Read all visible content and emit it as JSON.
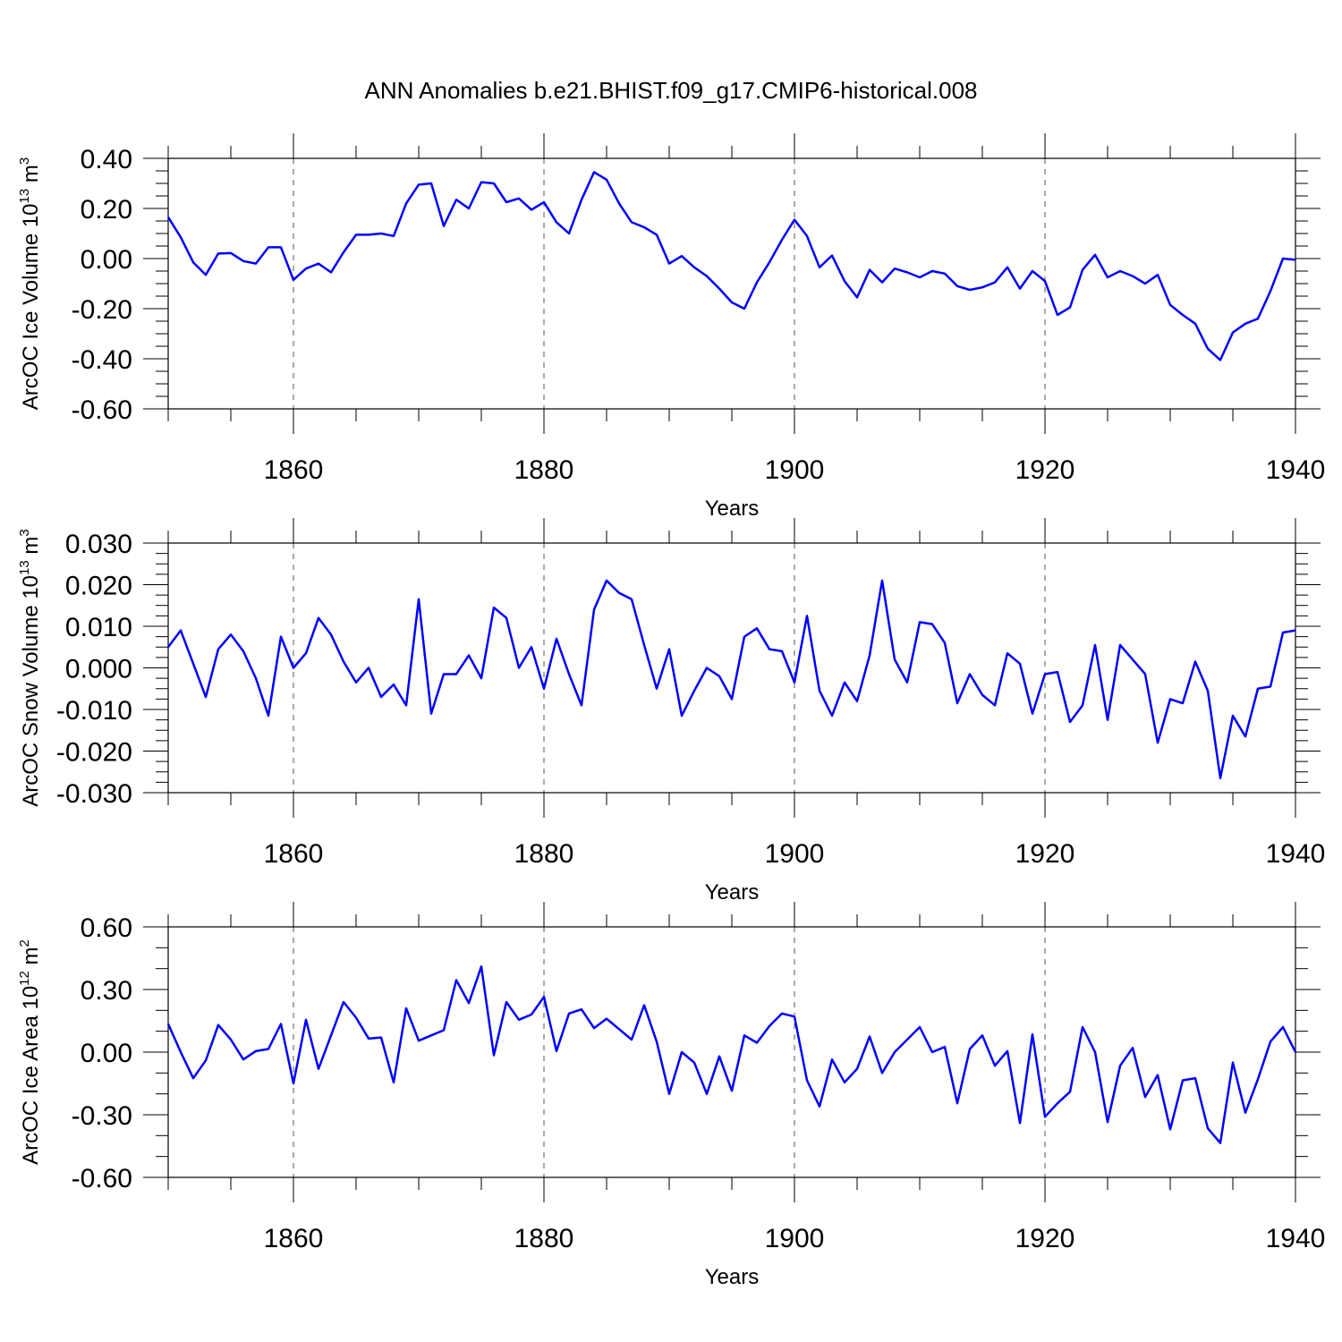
{
  "title": "ANN Anomalies b.e21.BHIST.f09_g17.CMIP6-historical.008",
  "chart_data": [
    {
      "type": "line",
      "ylabel_main": "ArcOC Ice Volume 10",
      "ylabel_sup": "13",
      "ylabel_unit": " m",
      "ylabel_unit_sup": "3",
      "xlabel": "Years",
      "xlim": [
        1850,
        1940
      ],
      "ylim": [
        -0.6,
        0.4
      ],
      "yticks": [
        -0.6,
        -0.4,
        -0.2,
        0.0,
        0.2,
        0.4
      ],
      "ytick_labels": [
        "-0.60",
        "-0.40",
        "-0.20",
        "0.00",
        "0.20",
        "0.40"
      ],
      "yminor_step": 0.05,
      "xticks": [
        1860,
        1880,
        1900,
        1920,
        1940
      ],
      "xtick_labels": [
        "1860",
        "1880",
        "1900",
        "1920",
        "1940"
      ],
      "grid_x": [
        1860,
        1880,
        1900,
        1920
      ],
      "x_start": 1850,
      "values": [
        0.165,
        0.085,
        -0.015,
        -0.065,
        0.02,
        0.022,
        -0.01,
        -0.02,
        0.045,
        0.045,
        -0.085,
        -0.04,
        -0.02,
        -0.055,
        0.025,
        0.095,
        0.095,
        0.1,
        0.09,
        0.22,
        0.295,
        0.3,
        0.13,
        0.235,
        0.2,
        0.305,
        0.3,
        0.225,
        0.24,
        0.195,
        0.225,
        0.145,
        0.1,
        0.235,
        0.345,
        0.315,
        0.22,
        0.145,
        0.125,
        0.095,
        -0.02,
        0.01,
        -0.035,
        -0.07,
        -0.12,
        -0.175,
        -0.2,
        -0.095,
        -0.015,
        0.075,
        0.155,
        0.09,
        -0.035,
        0.012,
        -0.09,
        -0.155,
        -0.045,
        -0.095,
        -0.04,
        -0.055,
        -0.075,
        -0.05,
        -0.06,
        -0.11,
        -0.125,
        -0.115,
        -0.095,
        -0.035,
        -0.12,
        -0.05,
        -0.09,
        -0.225,
        -0.195,
        -0.045,
        0.015,
        -0.075,
        -0.05,
        -0.07,
        -0.1,
        -0.065,
        -0.185,
        -0.225,
        -0.26,
        -0.36,
        -0.405,
        -0.295,
        -0.26,
        -0.24,
        -0.13,
        0.0,
        -0.005
      ]
    },
    {
      "type": "line",
      "ylabel_main": "ArcOC Snow Volume 10",
      "ylabel_sup": "13",
      "ylabel_unit": " m",
      "ylabel_unit_sup": "3",
      "xlabel": "Years",
      "xlim": [
        1850,
        1940
      ],
      "ylim": [
        -0.03,
        0.03
      ],
      "yticks": [
        -0.03,
        -0.02,
        -0.01,
        0.0,
        0.01,
        0.02,
        0.03
      ],
      "ytick_labels": [
        "-0.030",
        "-0.020",
        "-0.010",
        "0.000",
        "0.010",
        "0.020",
        "0.030"
      ],
      "yminor_step": 0.0025,
      "xticks": [
        1860,
        1880,
        1900,
        1920,
        1940
      ],
      "xtick_labels": [
        "1860",
        "1880",
        "1900",
        "1920",
        "1940"
      ],
      "grid_x": [
        1860,
        1880,
        1900,
        1920
      ],
      "x_start": 1850,
      "values": [
        0.005,
        0.009,
        0.001,
        -0.007,
        0.0045,
        0.008,
        0.004,
        -0.0025,
        -0.0115,
        0.0075,
        0.0,
        0.0035,
        0.012,
        0.008,
        0.0015,
        -0.0035,
        0.0,
        -0.007,
        -0.004,
        -0.009,
        0.0165,
        -0.011,
        -0.0015,
        -0.0015,
        0.003,
        -0.0025,
        0.0145,
        0.012,
        0.0,
        0.005,
        -0.005,
        0.007,
        -0.0015,
        -0.009,
        0.014,
        0.021,
        0.018,
        0.0165,
        0.0055,
        -0.005,
        0.0045,
        -0.0115,
        -0.0055,
        0.0,
        -0.002,
        -0.0075,
        0.0075,
        0.0095,
        0.0045,
        0.004,
        -0.0035,
        0.0125,
        -0.0055,
        -0.0115,
        -0.0035,
        -0.008,
        0.003,
        0.021,
        0.002,
        -0.0035,
        0.011,
        0.0105,
        0.006,
        -0.0085,
        -0.0015,
        -0.0065,
        -0.009,
        0.0035,
        0.001,
        -0.011,
        -0.0015,
        -0.001,
        -0.013,
        -0.009,
        0.0055,
        -0.0125,
        0.0055,
        0.002,
        -0.0015,
        -0.018,
        -0.0075,
        -0.0085,
        0.0015,
        -0.0055,
        -0.0265,
        -0.0115,
        -0.0165,
        -0.005,
        -0.0045,
        0.0085,
        0.009
      ]
    },
    {
      "type": "line",
      "ylabel_main": "ArcOC Ice Area 10",
      "ylabel_sup": "12",
      "ylabel_unit": " m",
      "ylabel_unit_sup": "2",
      "xlabel": "Years",
      "xlim": [
        1850,
        1940
      ],
      "ylim": [
        -0.6,
        0.6
      ],
      "yticks": [
        -0.6,
        -0.3,
        0.0,
        0.3,
        0.6
      ],
      "ytick_labels": [
        "-0.60",
        "-0.30",
        "0.00",
        "0.30",
        "0.60"
      ],
      "yminor_step": 0.1,
      "xticks": [
        1860,
        1880,
        1900,
        1920,
        1940
      ],
      "xtick_labels": [
        "1860",
        "1880",
        "1900",
        "1920",
        "1940"
      ],
      "grid_x": [
        1860,
        1880,
        1900,
        1920
      ],
      "x_start": 1850,
      "values": [
        0.135,
        0.0,
        -0.125,
        -0.04,
        0.13,
        0.06,
        -0.035,
        0.005,
        0.015,
        0.135,
        -0.15,
        0.155,
        -0.08,
        0.08,
        0.24,
        0.165,
        0.065,
        0.07,
        -0.145,
        0.21,
        0.055,
        0.08,
        0.105,
        0.345,
        0.235,
        0.41,
        -0.015,
        0.24,
        0.155,
        0.18,
        0.265,
        0.005,
        0.185,
        0.205,
        0.115,
        0.16,
        0.11,
        0.06,
        0.225,
        0.05,
        -0.2,
        0.0,
        -0.05,
        -0.2,
        -0.02,
        -0.185,
        0.08,
        0.045,
        0.125,
        0.185,
        0.17,
        -0.135,
        -0.26,
        -0.035,
        -0.145,
        -0.08,
        0.075,
        -0.1,
        0.0,
        0.06,
        0.12,
        0.0,
        0.025,
        -0.245,
        0.015,
        0.08,
        -0.065,
        0.005,
        -0.34,
        0.085,
        -0.31,
        -0.245,
        -0.19,
        0.12,
        0.0,
        -0.335,
        -0.065,
        0.02,
        -0.215,
        -0.11,
        -0.37,
        -0.135,
        -0.125,
        -0.365,
        -0.435,
        -0.05,
        -0.29,
        -0.13,
        0.05,
        0.12,
        0.0
      ]
    }
  ]
}
